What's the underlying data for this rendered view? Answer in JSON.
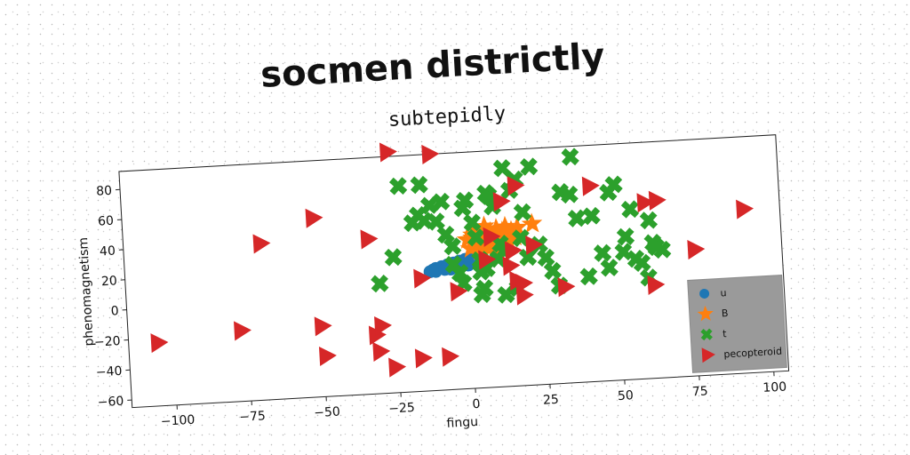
{
  "chart_data": {
    "type": "scatter",
    "suptitle": "socmen districtly",
    "title": "subtepidly",
    "xlabel": "fingu",
    "ylabel": "phenomagnetism",
    "xlim": [
      -115,
      105
    ],
    "ylim": [
      -65,
      92
    ],
    "xticks": [
      -100,
      -75,
      -50,
      -25,
      0,
      25,
      50,
      75,
      100
    ],
    "yticks": [
      -60,
      -40,
      -20,
      0,
      20,
      40,
      60,
      80
    ],
    "xtick_labels": [
      "−100",
      "−75",
      "−50",
      "−25",
      "0",
      "25",
      "50",
      "75",
      "100"
    ],
    "ytick_labels": [
      "−60",
      "−40",
      "−20",
      "0",
      "20",
      "40",
      "60",
      "80"
    ],
    "grid": false,
    "legend_position": "lower-right",
    "series": [
      {
        "name": "u",
        "marker": "circle",
        "color": "#1f77b4",
        "points": [
          [
            -13,
            14
          ],
          [
            -12,
            15
          ],
          [
            -11,
            16
          ],
          [
            -10,
            16
          ],
          [
            -9,
            17
          ],
          [
            -8,
            17
          ],
          [
            -7,
            18
          ],
          [
            -6,
            18
          ],
          [
            -5,
            19
          ],
          [
            -4,
            19
          ],
          [
            -3,
            20
          ],
          [
            -2,
            20
          ],
          [
            -1,
            21
          ],
          [
            0,
            21
          ],
          [
            1,
            22
          ],
          [
            -11,
            14
          ],
          [
            -8,
            15
          ],
          [
            -5,
            16
          ],
          [
            -2,
            18
          ],
          [
            1,
            19
          ],
          [
            3,
            20
          ],
          [
            -6,
            15
          ],
          [
            -3,
            16
          ],
          [
            0,
            17
          ]
        ]
      },
      {
        "name": "B",
        "marker": "star",
        "color": "#ff7f0e",
        "points": [
          [
            0,
            34
          ],
          [
            2,
            37
          ],
          [
            3,
            40
          ],
          [
            4,
            33
          ],
          [
            5,
            36
          ],
          [
            6,
            42
          ],
          [
            7,
            35
          ],
          [
            8,
            38
          ],
          [
            9,
            32
          ],
          [
            10,
            40
          ],
          [
            11,
            36
          ],
          [
            12,
            38
          ],
          [
            13,
            41
          ],
          [
            14,
            35
          ],
          [
            15,
            38
          ],
          [
            16,
            34
          ],
          [
            17,
            40
          ],
          [
            6,
            30
          ],
          [
            8,
            29
          ],
          [
            10,
            31
          ],
          [
            12,
            33
          ],
          [
            1,
            28
          ],
          [
            3,
            30
          ],
          [
            2,
            35
          ],
          [
            9,
            36
          ],
          [
            22,
            42
          ],
          [
            4,
            26
          ],
          [
            7,
            27
          ],
          [
            11,
            28
          ],
          [
            14,
            30
          ]
        ]
      },
      {
        "name": "t",
        "marker": "x",
        "color": "#2ca02c",
        "points": [
          [
            -30,
            8
          ],
          [
            -25,
            25
          ],
          [
            -22,
            72
          ],
          [
            -18,
            47
          ],
          [
            -16,
            52
          ],
          [
            -14,
            48
          ],
          [
            -15,
            72
          ],
          [
            -12,
            58
          ],
          [
            -10,
            47
          ],
          [
            -8,
            60
          ],
          [
            -7,
            38
          ],
          [
            -5,
            30
          ],
          [
            -5,
            18
          ],
          [
            -3,
            12
          ],
          [
            -2,
            5
          ],
          [
            -1,
            55
          ],
          [
            0,
            60
          ],
          [
            2,
            45
          ],
          [
            3,
            35
          ],
          [
            4,
            20
          ],
          [
            4,
            12
          ],
          [
            4,
            -3
          ],
          [
            5,
            1
          ],
          [
            6,
            14
          ],
          [
            7,
            64
          ],
          [
            8,
            62
          ],
          [
            9,
            55
          ],
          [
            10,
            20
          ],
          [
            11,
            30
          ],
          [
            12,
            25
          ],
          [
            12,
            -4
          ],
          [
            13,
            80
          ],
          [
            15,
            65
          ],
          [
            16,
            0
          ],
          [
            17,
            72
          ],
          [
            18,
            33
          ],
          [
            19,
            50
          ],
          [
            20,
            20
          ],
          [
            22,
            80
          ],
          [
            24,
            28
          ],
          [
            26,
            19
          ],
          [
            28,
            10
          ],
          [
            30,
            0
          ],
          [
            32,
            62
          ],
          [
            35,
            60
          ],
          [
            36,
            85
          ],
          [
            37,
            44
          ],
          [
            40,
            5
          ],
          [
            42,
            45
          ],
          [
            45,
            20
          ],
          [
            47,
            10
          ],
          [
            48,
            60
          ],
          [
            50,
            65
          ],
          [
            52,
            20
          ],
          [
            53,
            30
          ],
          [
            55,
            48
          ],
          [
            56,
            15
          ],
          [
            58,
            12
          ],
          [
            60,
            2
          ],
          [
            61,
            40
          ],
          [
            62,
            25
          ],
          [
            63,
            22
          ],
          [
            65,
            20
          ]
        ]
      },
      {
        "name": "pecopteroid",
        "marker": "triangle-right",
        "color": "#d62728",
        "points": [
          [
            -105,
            -23
          ],
          [
            -77,
            -18
          ],
          [
            -69,
            39
          ],
          [
            -51,
            54
          ],
          [
            -50,
            -18
          ],
          [
            -49,
            -38
          ],
          [
            -33,
            38
          ],
          [
            -32,
            -26
          ],
          [
            -31,
            -37
          ],
          [
            -30,
            -20
          ],
          [
            -26,
            -48
          ],
          [
            -25,
            95
          ],
          [
            -17,
            -43
          ],
          [
            -16,
            10
          ],
          [
            -11,
            92
          ],
          [
            -8,
            -43
          ],
          [
            -4,
            0
          ],
          [
            6,
            20
          ],
          [
            8,
            35
          ],
          [
            12,
            58
          ],
          [
            14,
            15
          ],
          [
            15,
            25
          ],
          [
            16,
            5
          ],
          [
            17,
            68
          ],
          [
            18,
            3
          ],
          [
            18,
            -5
          ],
          [
            22,
            28
          ],
          [
            32,
            -1
          ],
          [
            42,
            65
          ],
          [
            60,
            52
          ],
          [
            62,
            -3
          ],
          [
            64,
            53
          ],
          [
            76,
            19
          ],
          [
            93,
            44
          ]
        ]
      }
    ],
    "legend": [
      "u",
      "B",
      "t",
      "pecopteroid"
    ]
  }
}
